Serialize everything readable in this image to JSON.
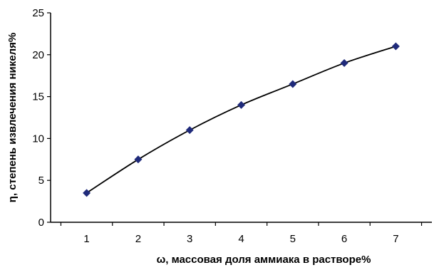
{
  "chart_data": {
    "type": "line",
    "title": "",
    "xlabel": "ω, массовая доля аммиака в растворе%",
    "ylabel": "η, степень извлечения никеля%",
    "x": [
      1,
      2,
      3,
      4,
      5,
      6,
      7
    ],
    "xlim": [
      0.3,
      7.7
    ],
    "ylim": [
      0,
      25
    ],
    "yticks": [
      0,
      5,
      10,
      15,
      20,
      25
    ],
    "xticks": [
      1,
      2,
      3,
      4,
      5,
      6,
      7
    ],
    "grid": false,
    "series": [
      {
        "values": [
          3.5,
          7.5,
          11,
          14,
          16.5,
          19,
          21
        ]
      }
    ],
    "colors": {
      "line": "#000000",
      "marker": "#1f2a7a"
    }
  }
}
